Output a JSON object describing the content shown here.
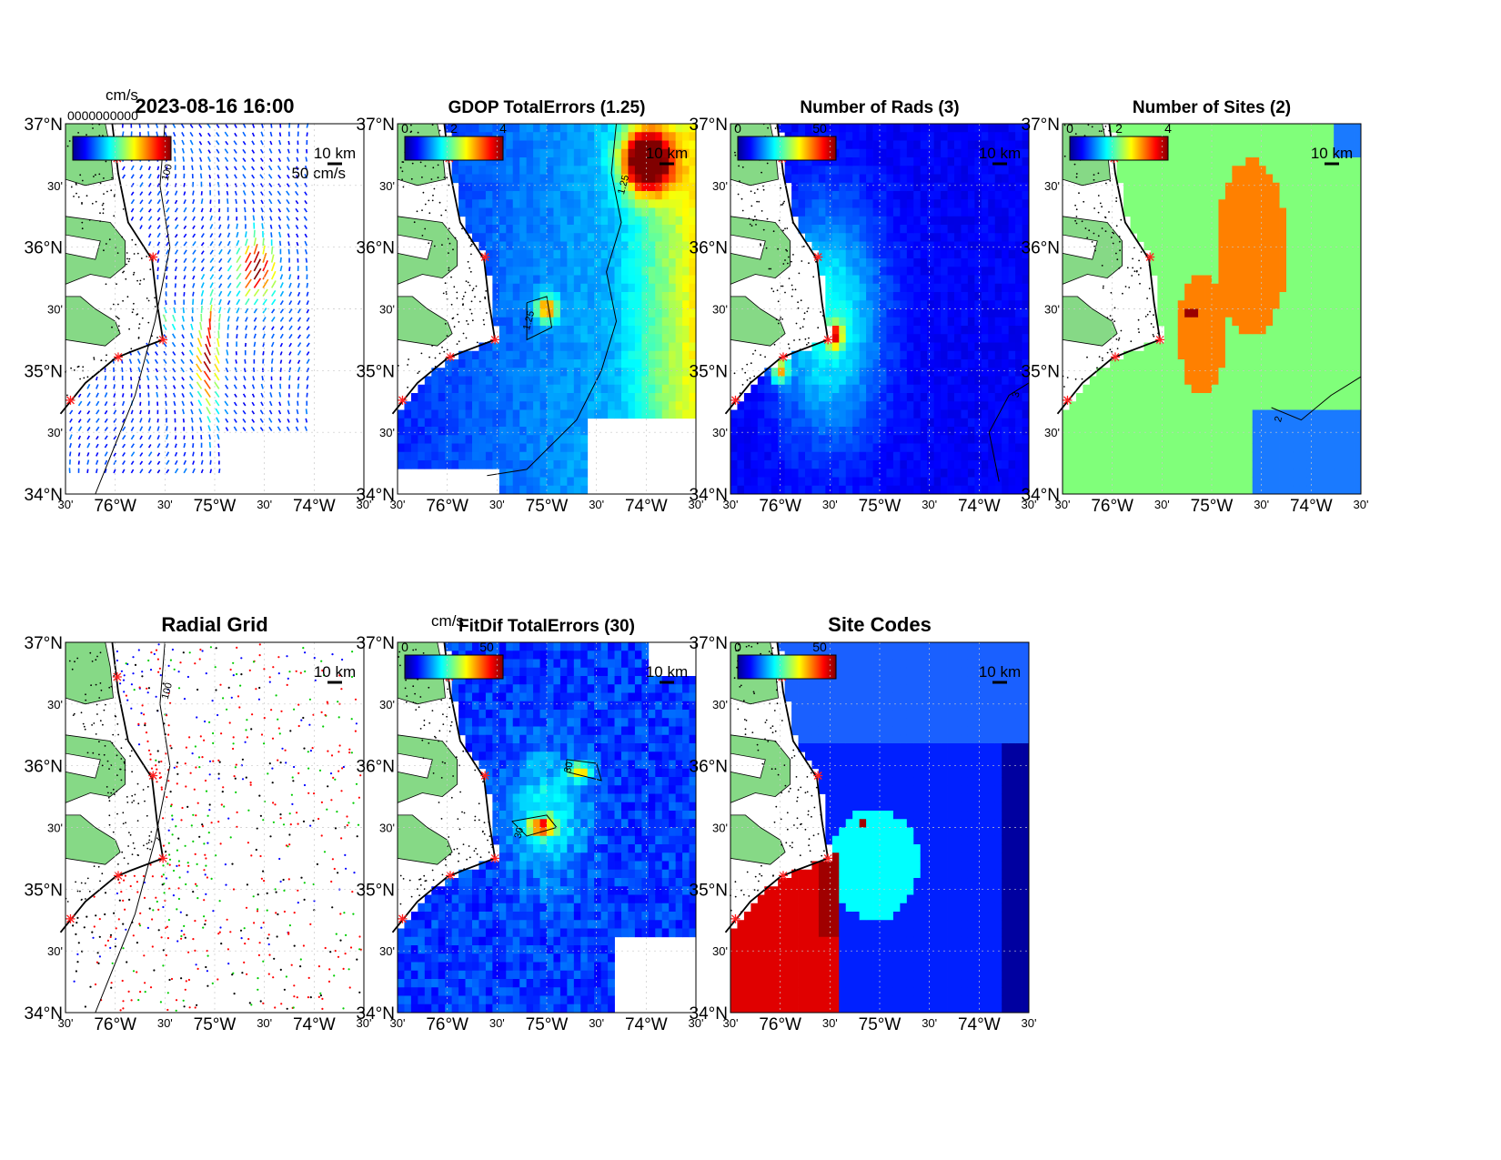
{
  "map": {
    "lat_ticks": [
      "37°N",
      "30'",
      "36°N",
      "30'",
      "35°N",
      "30'",
      "34°N"
    ],
    "lon_ticks": [
      "30'",
      "76°W",
      "30'",
      "75°W",
      "30'",
      "74°W",
      "30'"
    ],
    "lon_range": [
      -76.5,
      -73.5
    ],
    "lat_range": [
      34,
      37
    ],
    "scale_bar": "10 km"
  },
  "colors": {
    "land": "#86d986",
    "site_marker": "#ff2020",
    "contour": "#000000"
  },
  "panels": [
    {
      "id": "totals",
      "title": "2023-08-16 16:00",
      "unit_label": "cm/s",
      "cb_ticks": [],
      "overlap_label": "0000000000",
      "vector_scale": "50 cm/s",
      "contour_labels": [
        "100",
        "100"
      ]
    },
    {
      "id": "gdop",
      "title": "GDOP TotalErrors (1.25)",
      "cb_ticks": [
        "0",
        "2",
        "4"
      ],
      "contour_labels": [
        "1.25",
        "1.25",
        "1.25",
        "1.25",
        "1.25"
      ]
    },
    {
      "id": "rads",
      "title": "Number of Rads (3)",
      "cb_ticks": [
        "0",
        "50"
      ],
      "contour_labels": [
        "3",
        "3"
      ]
    },
    {
      "id": "sites",
      "title": "Number of Sites (2)",
      "cb_ticks": [
        "0",
        "2",
        "4"
      ],
      "contour_labels": [
        "2",
        "2",
        "2",
        "2",
        "2"
      ]
    },
    {
      "id": "radial",
      "title": "Radial Grid",
      "cb_ticks": [],
      "contour_labels": [
        "100",
        "100"
      ]
    },
    {
      "id": "fitdif",
      "title": "FitDif TotalErrors (30)",
      "unit_label": "cm/s",
      "cb_ticks": [
        "0",
        "50"
      ],
      "contour_labels": [
        "30",
        "30",
        "30"
      ]
    },
    {
      "id": "codes",
      "title": "Site Codes",
      "cb_ticks": [
        "0",
        "50"
      ],
      "contour_labels": []
    }
  ],
  "sites": [
    {
      "lon": -75.98,
      "lat": 36.72
    },
    {
      "lon": -75.62,
      "lat": 35.92
    },
    {
      "lon": -75.52,
      "lat": 35.25
    },
    {
      "lon": -75.97,
      "lat": 35.11
    },
    {
      "lon": -76.45,
      "lat": 34.76
    }
  ]
}
